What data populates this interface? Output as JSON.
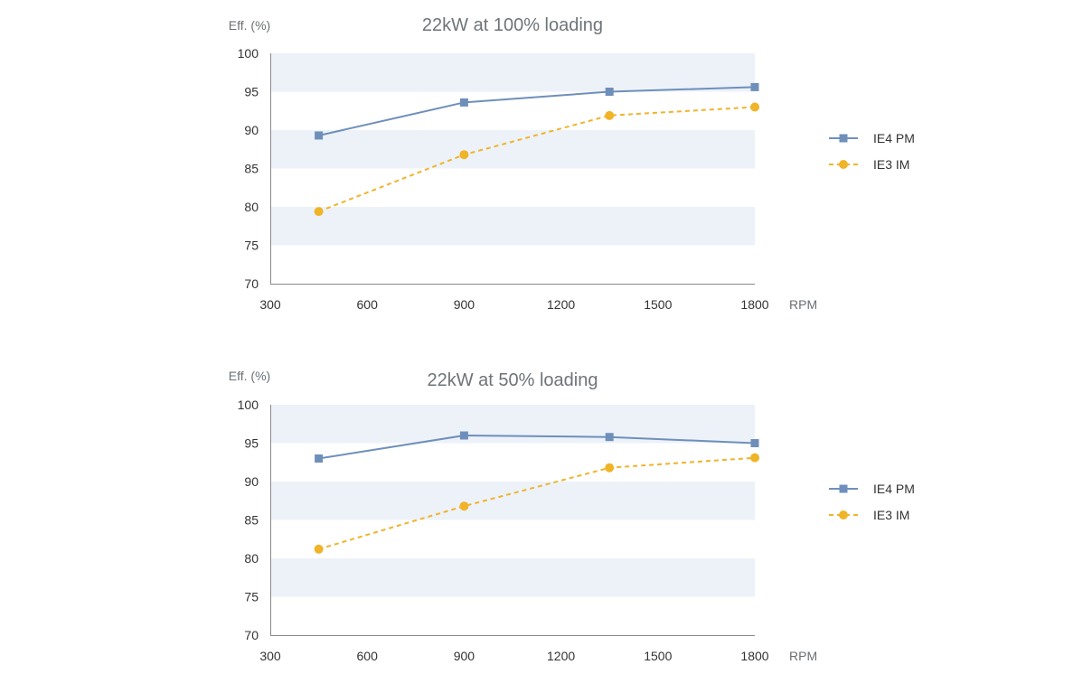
{
  "chart_data": [
    {
      "type": "line",
      "title": "22kW at 100% loading",
      "ylabel": "Eff. (%)",
      "xlabel": "RPM",
      "xlim": [
        300,
        1800
      ],
      "ylim": [
        70,
        100
      ],
      "xticks": [
        "300",
        "600",
        "900",
        "1200",
        "1500",
        "1800"
      ],
      "yticks": [
        "100",
        "95",
        "90",
        "85",
        "80",
        "75",
        "70"
      ],
      "grid": "alternating horizontal bands",
      "legend_position": "right",
      "x": [
        450,
        900,
        1350,
        1800
      ],
      "series": [
        {
          "name": "IE4 PM",
          "values": [
            89.3,
            93.6,
            95.0,
            95.6
          ],
          "color": "#6f8fbb",
          "marker": "square",
          "dash": "solid"
        },
        {
          "name": "IE3 IM",
          "values": [
            79.4,
            86.8,
            91.9,
            93.0
          ],
          "color": "#f0b429",
          "marker": "circle",
          "dash": "dashed"
        }
      ]
    },
    {
      "type": "line",
      "title": "22kW at 50% loading",
      "ylabel": "Eff. (%)",
      "xlabel": "RPM",
      "xlim": [
        300,
        1800
      ],
      "ylim": [
        70,
        100
      ],
      "xticks": [
        "300",
        "600",
        "900",
        "1200",
        "1500",
        "1800"
      ],
      "yticks": [
        "100",
        "95",
        "90",
        "85",
        "80",
        "75",
        "70"
      ],
      "grid": "alternating horizontal bands",
      "legend_position": "right",
      "x": [
        450,
        900,
        1350,
        1800
      ],
      "series": [
        {
          "name": "IE4 PM",
          "values": [
            93.0,
            96.0,
            95.8,
            95.0
          ],
          "color": "#6f8fbb",
          "marker": "square",
          "dash": "solid"
        },
        {
          "name": "IE3 IM",
          "values": [
            81.2,
            86.8,
            91.8,
            93.1
          ],
          "color": "#f0b429",
          "marker": "circle",
          "dash": "dashed"
        }
      ]
    }
  ],
  "band_color": "#edf2f9",
  "axis_color": "#8a8a8a"
}
